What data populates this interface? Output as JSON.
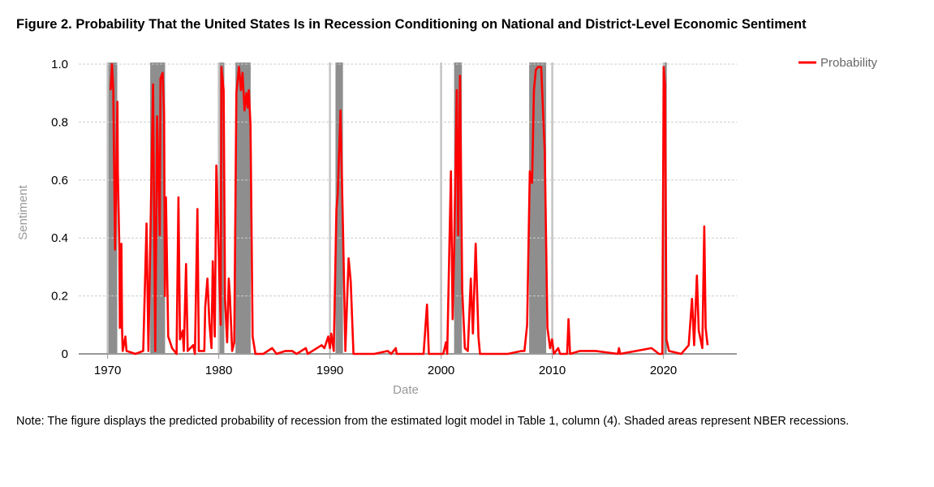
{
  "chart_data": {
    "type": "line",
    "title": "Figure 2. Probability That the United States Is in Recession Conditioning on National and District-Level Economic Sentiment",
    "xlabel": "Date",
    "ylabel": "Sentiment",
    "xlim": [
      1967.4,
      2026.6
    ],
    "ylim": [
      0,
      1.0
    ],
    "x_ticks": [
      "1970",
      "1980",
      "1990",
      "2000",
      "2010",
      "2020"
    ],
    "y_ticks": [
      "0",
      "0.2",
      "0.4",
      "0.6",
      "0.8",
      "1.0"
    ],
    "grid": "horizontal dashed",
    "legend_position": "top-right",
    "shaded_regions_label": "NBER recessions",
    "shaded_regions": [
      [
        1969.92,
        1970.87
      ],
      [
        1973.83,
        1975.17
      ],
      [
        1980.0,
        1980.5
      ],
      [
        1981.5,
        1982.87
      ],
      [
        1990.5,
        1991.17
      ],
      [
        2001.17,
        2001.87
      ],
      [
        2007.92,
        2009.45
      ],
      [
        2020.08,
        2020.3
      ]
    ],
    "series": [
      {
        "name": "Probability",
        "color": "#ff0000",
        "points": [
          [
            1970.27,
            0.91
          ],
          [
            1970.39,
            1.0
          ],
          [
            1970.51,
            0.91
          ],
          [
            1970.67,
            0.36
          ],
          [
            1970.88,
            0.87
          ],
          [
            1970.92,
            0.63
          ],
          [
            1971.06,
            0.36
          ],
          [
            1971.1,
            0.09
          ],
          [
            1971.24,
            0.38
          ],
          [
            1971.3,
            0.09
          ],
          [
            1971.36,
            0.01
          ],
          [
            1971.6,
            0.06
          ],
          [
            1971.7,
            0.01
          ],
          [
            1972.5,
            0.0
          ],
          [
            1973.2,
            0.01
          ],
          [
            1973.5,
            0.45
          ],
          [
            1973.67,
            0.01
          ],
          [
            1974.09,
            0.93
          ],
          [
            1974.28,
            0.01
          ],
          [
            1974.45,
            0.82
          ],
          [
            1974.69,
            0.41
          ],
          [
            1974.76,
            0.95
          ],
          [
            1974.95,
            0.97
          ],
          [
            1975.08,
            0.83
          ],
          [
            1975.15,
            0.2
          ],
          [
            1975.25,
            0.54
          ],
          [
            1975.45,
            0.06
          ],
          [
            1975.8,
            0.02
          ],
          [
            1976.2,
            0.0
          ],
          [
            1976.37,
            0.54
          ],
          [
            1976.51,
            0.05
          ],
          [
            1976.75,
            0.08
          ],
          [
            1976.85,
            0.01
          ],
          [
            1977.06,
            0.31
          ],
          [
            1977.2,
            0.01
          ],
          [
            1977.69,
            0.03
          ],
          [
            1977.85,
            0.0
          ],
          [
            1978.08,
            0.5
          ],
          [
            1978.2,
            0.01
          ],
          [
            1978.7,
            0.01
          ],
          [
            1978.78,
            0.16
          ],
          [
            1978.98,
            0.26
          ],
          [
            1979.15,
            0.11
          ],
          [
            1979.34,
            0.02
          ],
          [
            1979.46,
            0.32
          ],
          [
            1979.64,
            0.06
          ],
          [
            1979.78,
            0.65
          ],
          [
            1980.0,
            0.35
          ],
          [
            1980.17,
            0.1
          ],
          [
            1980.24,
            0.99
          ],
          [
            1980.44,
            0.91
          ],
          [
            1980.56,
            0.19
          ],
          [
            1980.75,
            0.04
          ],
          [
            1980.9,
            0.26
          ],
          [
            1981.0,
            0.2
          ],
          [
            1981.2,
            0.01
          ],
          [
            1981.39,
            0.04
          ],
          [
            1981.58,
            0.9
          ],
          [
            1981.82,
            0.99
          ],
          [
            1981.99,
            0.91
          ],
          [
            1982.14,
            0.97
          ],
          [
            1982.31,
            0.84
          ],
          [
            1982.48,
            0.9
          ],
          [
            1982.6,
            0.85
          ],
          [
            1982.7,
            0.91
          ],
          [
            1982.85,
            0.79
          ],
          [
            1983.04,
            0.06
          ],
          [
            1983.3,
            0.0
          ],
          [
            1984.0,
            0.0
          ],
          [
            1984.8,
            0.02
          ],
          [
            1985.2,
            0.0
          ],
          [
            1986.0,
            0.01
          ],
          [
            1986.6,
            0.01
          ],
          [
            1987.0,
            0.0
          ],
          [
            1987.83,
            0.02
          ],
          [
            1988.0,
            0.0
          ],
          [
            1989.25,
            0.03
          ],
          [
            1989.5,
            0.02
          ],
          [
            1989.85,
            0.06
          ],
          [
            1990.0,
            0.02
          ],
          [
            1990.12,
            0.07
          ],
          [
            1990.34,
            0.01
          ],
          [
            1990.58,
            0.5
          ],
          [
            1990.7,
            0.55
          ],
          [
            1990.95,
            0.84
          ],
          [
            1991.19,
            0.4
          ],
          [
            1991.39,
            0.01
          ],
          [
            1991.68,
            0.33
          ],
          [
            1991.87,
            0.25
          ],
          [
            1992.12,
            0.0
          ],
          [
            1993.0,
            0.0
          ],
          [
            1994.0,
            0.0
          ],
          [
            1995.2,
            0.01
          ],
          [
            1995.5,
            0.0
          ],
          [
            1995.93,
            0.02
          ],
          [
            1996.0,
            0.0
          ],
          [
            1998.42,
            0.0
          ],
          [
            1998.73,
            0.17
          ],
          [
            1998.9,
            0.0
          ],
          [
            2000.2,
            0.0
          ],
          [
            2000.44,
            0.04
          ],
          [
            2000.55,
            0.0
          ],
          [
            2000.88,
            0.63
          ],
          [
            2001.04,
            0.12
          ],
          [
            2001.17,
            0.35
          ],
          [
            2001.41,
            0.91
          ],
          [
            2001.53,
            0.41
          ],
          [
            2001.7,
            0.96
          ],
          [
            2001.9,
            0.22
          ],
          [
            2002.14,
            0.02
          ],
          [
            2002.4,
            0.01
          ],
          [
            2002.67,
            0.26
          ],
          [
            2002.86,
            0.07
          ],
          [
            2003.11,
            0.38
          ],
          [
            2003.36,
            0.06
          ],
          [
            2003.5,
            0.0
          ],
          [
            2005.0,
            0.0
          ],
          [
            2006.0,
            0.0
          ],
          [
            2007.25,
            0.01
          ],
          [
            2007.5,
            0.01
          ],
          [
            2007.74,
            0.1
          ],
          [
            2007.98,
            0.63
          ],
          [
            2008.18,
            0.59
          ],
          [
            2008.35,
            0.91
          ],
          [
            2008.52,
            0.98
          ],
          [
            2008.71,
            0.99
          ],
          [
            2009.0,
            0.99
          ],
          [
            2009.32,
            0.7
          ],
          [
            2009.56,
            0.09
          ],
          [
            2009.8,
            0.02
          ],
          [
            2009.98,
            0.05
          ],
          [
            2010.15,
            0.0
          ],
          [
            2010.53,
            0.02
          ],
          [
            2010.7,
            0.0
          ],
          [
            2011.34,
            0.0
          ],
          [
            2011.46,
            0.12
          ],
          [
            2011.6,
            0.0
          ],
          [
            2012.5,
            0.01
          ],
          [
            2013.9,
            0.01
          ],
          [
            2015.9,
            0.0
          ],
          [
            2016.0,
            0.02
          ],
          [
            2016.1,
            0.0
          ],
          [
            2018.93,
            0.02
          ],
          [
            2019.6,
            0.0
          ],
          [
            2019.9,
            0.0
          ],
          [
            2020.02,
            0.99
          ],
          [
            2020.15,
            0.93
          ],
          [
            2020.27,
            0.05
          ],
          [
            2020.5,
            0.01
          ],
          [
            2021.6,
            0.0
          ],
          [
            2022.27,
            0.03
          ],
          [
            2022.57,
            0.19
          ],
          [
            2022.76,
            0.03
          ],
          [
            2023.01,
            0.27
          ],
          [
            2023.18,
            0.08
          ],
          [
            2023.5,
            0.02
          ],
          [
            2023.67,
            0.44
          ],
          [
            2023.8,
            0.09
          ],
          [
            2023.97,
            0.03
          ]
        ]
      }
    ]
  },
  "note": "Note: The figure displays the predicted probability of recession from the estimated logit model in Table 1, column (4). Shaded areas represent NBER recessions.",
  "colors": {
    "line": "#ff0000",
    "shade": "#8e8e8e",
    "grid": "#cccccc",
    "axis": "#999999"
  }
}
